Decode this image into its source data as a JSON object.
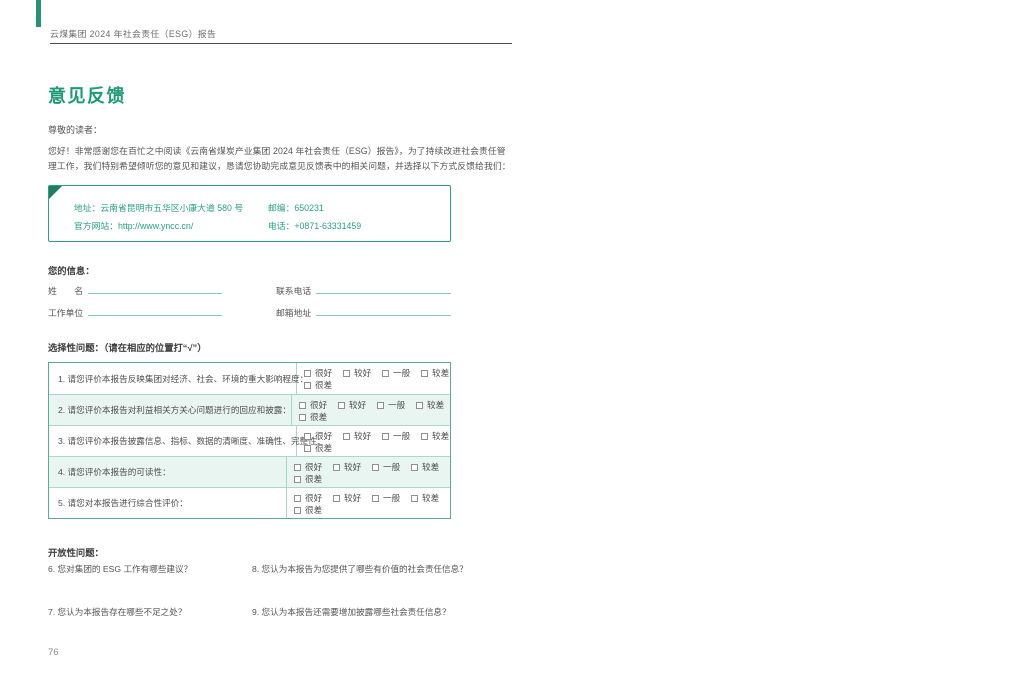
{
  "page": {
    "header": "云煤集团 2024 年社会责任（ESG）报告",
    "title": "意见反馈",
    "page_number": "76"
  },
  "intro": {
    "salutation": "尊敬的读者：",
    "line1": "您好！非常感谢您在百忙之中阅读《云南省煤炭产业集团 2024 年社会责任（ESG）报告》，为了持续改进社会责任管",
    "line2": "理工作，我们特别希望倾听您的意见和建议，恳请您协助完成意见反馈表中的相关问题，并选择以下方式反馈给我们："
  },
  "contact": {
    "address": "地址：云南省昆明市五华区小康大道 580 号",
    "postcode": "邮编：650231",
    "website": "官方网站：http://www.yncc.cn/",
    "phone": "电话：+0871-63331459"
  },
  "info": {
    "heading": "您的信息：",
    "fields": [
      "姓　　名",
      "联系电话",
      "工作单位",
      "邮箱地址"
    ]
  },
  "selective": {
    "heading": "选择性问题：（请在相应的位置打“√”）",
    "options": [
      "很好",
      "较好",
      "一般",
      "较差",
      "很差"
    ],
    "questions": [
      "1. 请您评价本报告反映集团对经济、社会、环境的重大影响程度：",
      "2. 请您评价本报告对利益相关方关心问题进行的回应和披露：",
      "3. 请您评价本报告披露信息、指标、数据的清晰度、准确性、完整性：",
      "4. 请您评价本报告的可读性：",
      "5. 请您对本报告进行综合性评价："
    ]
  },
  "open": {
    "heading": "开放性问题：",
    "q6": "6. 您对集团的 ESG 工作有哪些建议？",
    "q7": "7. 您认为本报告存在哪些不足之处？",
    "q8": "8. 您认为本报告为您提供了哪些有价值的社会责任信息？",
    "q9": "9. 您认为本报告还需要增加披露哪些社会责任信息？"
  },
  "colors": {
    "accent_green": "#1d9b78",
    "box_border_green": "#2aa183",
    "table_border_green": "#57ad90",
    "alt_row_bg": "#e9f5f0",
    "field_underline": "#85cab5"
  }
}
